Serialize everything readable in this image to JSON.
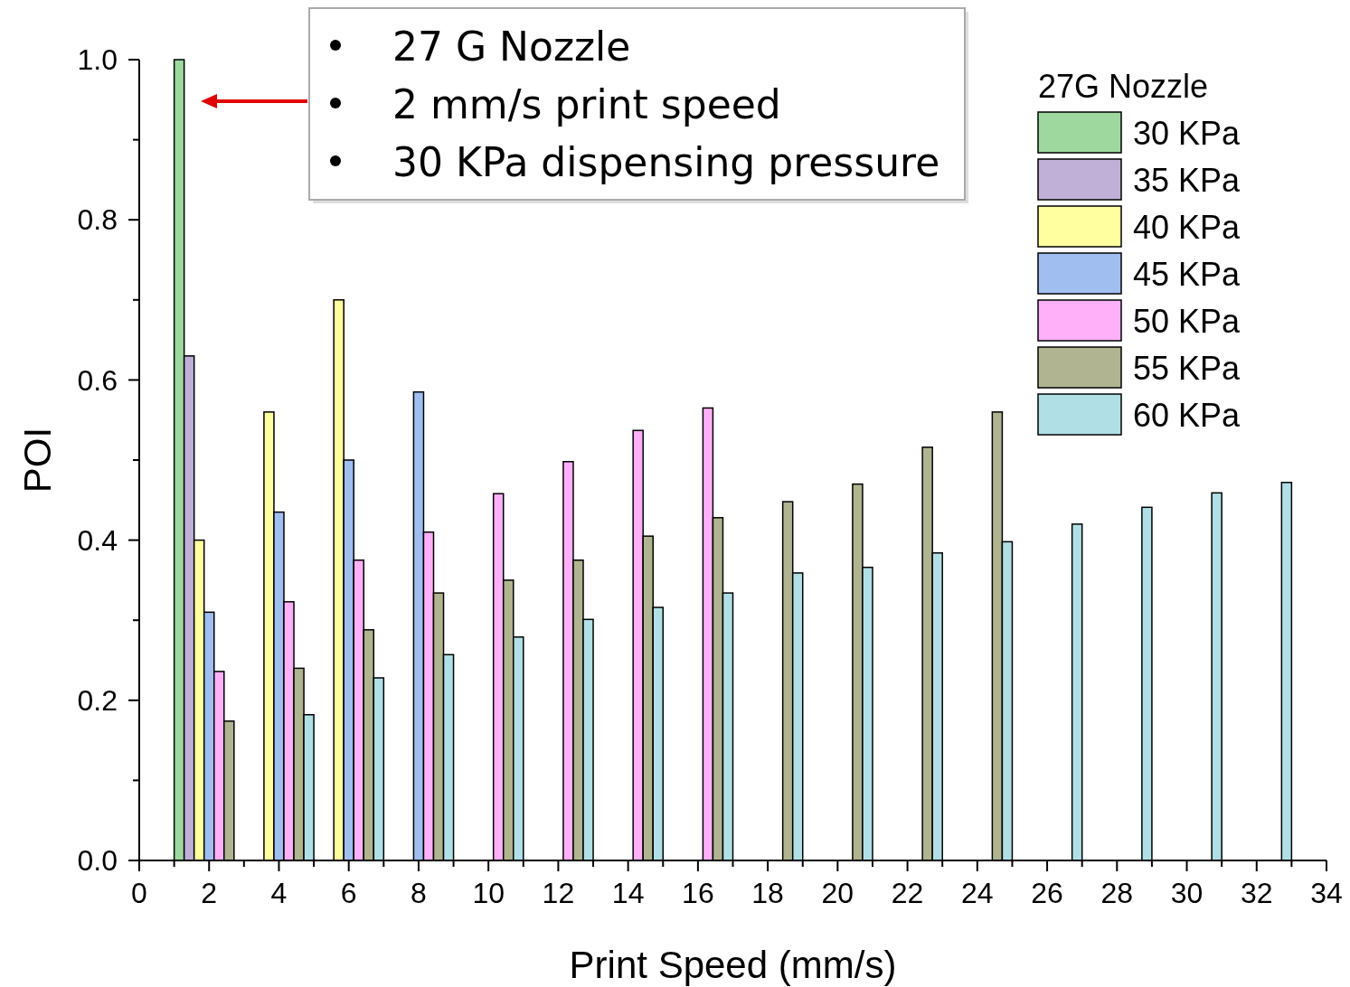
{
  "chart_data": {
    "type": "bar",
    "xlabel": "Print Speed (mm/s)",
    "ylabel": "POI",
    "legend_title": "27G Nozzle",
    "legend": "top right",
    "annotations": [
      "27 G Nozzle",
      "2 mm/s print speed",
      "30 KPa dispensing pressure"
    ],
    "x": [
      2,
      4,
      6,
      8,
      10,
      12,
      14,
      16,
      18,
      20,
      22,
      24,
      26,
      28,
      30,
      32
    ],
    "xlim": [
      0,
      34
    ],
    "xticks": [
      0,
      {
        "value": 1,
        "label": null
      },
      2,
      {
        "value": 3,
        "label": null
      },
      4,
      {
        "value": 5,
        "label": null
      },
      6,
      {
        "value": 7,
        "label": null
      },
      8,
      {
        "value": 9,
        "label": null
      },
      10,
      {
        "value": 11,
        "label": null
      },
      12,
      {
        "value": 13,
        "label": null
      },
      14,
      {
        "value": 15,
        "label": null
      },
      16,
      {
        "value": 17,
        "label": null
      },
      18,
      {
        "value": 19,
        "label": null
      },
      20,
      {
        "value": 21,
        "label": null
      },
      22,
      {
        "value": 23,
        "label": null
      },
      24,
      {
        "value": 25,
        "label": null
      },
      26,
      {
        "value": 27,
        "label": null
      },
      28,
      {
        "value": 29,
        "label": null
      },
      30,
      {
        "value": 31,
        "label": null
      },
      32,
      {
        "value": 33,
        "label": null
      },
      34
    ],
    "ylim": [
      0,
      1.0
    ],
    "yticks": [
      {
        "value": 0,
        "label": "0.0"
      },
      {
        "value": 0.1,
        "label": null
      },
      {
        "value": 0.2,
        "label": "0.2"
      },
      {
        "value": 0.3,
        "label": null
      },
      {
        "value": 0.4,
        "label": "0.4"
      },
      {
        "value": 0.5,
        "label": null
      },
      {
        "value": 0.6,
        "label": "0.6"
      },
      {
        "value": 0.7,
        "label": null
      },
      {
        "value": 0.8,
        "label": "0.8"
      },
      {
        "value": 0.9,
        "label": null
      },
      {
        "value": 1.0,
        "label": "1.0"
      }
    ],
    "series": [
      {
        "name": "30 KPa",
        "color": "#9ed89e",
        "values": [
          1.0,
          null,
          null,
          null,
          null,
          null,
          null,
          null,
          null,
          null,
          null,
          null,
          null,
          null,
          null,
          null
        ]
      },
      {
        "name": "35 KPa",
        "color": "#c0b0d8",
        "values": [
          0.63,
          null,
          null,
          null,
          null,
          null,
          null,
          null,
          null,
          null,
          null,
          null,
          null,
          null,
          null,
          null
        ]
      },
      {
        "name": "40 KPa",
        "color": "#ffffa0",
        "values": [
          0.4,
          0.56,
          0.7,
          null,
          null,
          null,
          null,
          null,
          null,
          null,
          null,
          null,
          null,
          null,
          null,
          null
        ]
      },
      {
        "name": "45 KPa",
        "color": "#a0bef0",
        "values": [
          0.31,
          0.435,
          0.5,
          0.585,
          null,
          null,
          null,
          null,
          null,
          null,
          null,
          null,
          null,
          null,
          null,
          null
        ]
      },
      {
        "name": "50 KPa",
        "color": "#ffb0f8",
        "values": [
          0.236,
          0.323,
          0.375,
          0.41,
          0.458,
          0.498,
          0.537,
          0.565,
          null,
          null,
          null,
          null,
          null,
          null,
          null,
          null
        ]
      },
      {
        "name": "55 KPa",
        "color": "#b0b490",
        "values": [
          0.174,
          0.24,
          0.288,
          0.334,
          0.35,
          0.375,
          0.405,
          0.428,
          0.448,
          0.47,
          0.516,
          0.56,
          null,
          null,
          null,
          null
        ]
      },
      {
        "name": "60 KPa",
        "color": "#b0e0e6",
        "values": [
          null,
          0.182,
          0.228,
          0.257,
          0.279,
          0.301,
          0.316,
          0.334,
          0.359,
          0.366,
          0.384,
          0.398,
          0.42,
          0.441,
          0.459,
          0.472
        ]
      }
    ]
  }
}
